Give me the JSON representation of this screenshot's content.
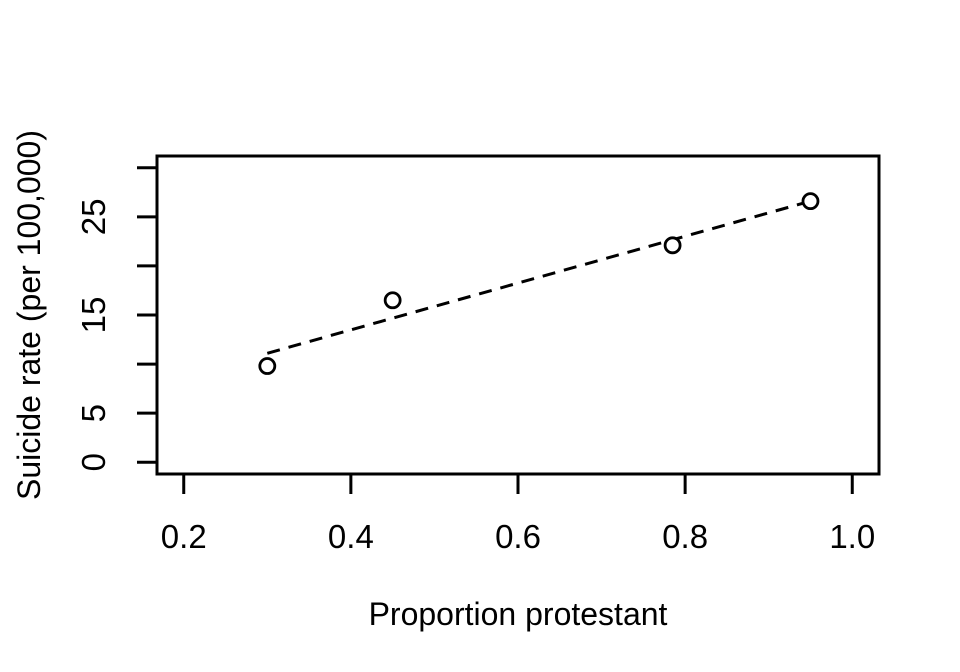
{
  "figure": {
    "background": "#ffffff",
    "foreground": "#000000"
  },
  "chart_data": {
    "type": "scatter",
    "title": "",
    "xlabel": "Proportion protestant",
    "ylabel": "Suicide rate (per 100,000)",
    "points": [
      {
        "x": 0.3,
        "y": 9.8
      },
      {
        "x": 0.45,
        "y": 16.5
      },
      {
        "x": 0.785,
        "y": 22.1
      },
      {
        "x": 0.95,
        "y": 26.6
      }
    ],
    "marker": "open-circle",
    "fit_line": {
      "style": "dashed",
      "x1": 0.3,
      "y1": 11.1,
      "x2": 0.95,
      "y2": 26.6
    },
    "xlim": [
      0.168,
      1.032
    ],
    "ylim": [
      -1.2,
      31.2
    ],
    "x_ticks": {
      "values": [
        0.2,
        0.4,
        0.6,
        0.8,
        1.0
      ],
      "labels": [
        "0.2",
        "0.4",
        "0.6",
        "0.8",
        "1.0"
      ]
    },
    "y_ticks": {
      "values": [
        0,
        5,
        10,
        15,
        20,
        25,
        30
      ],
      "labels": [
        "0",
        "5",
        "",
        "15",
        "",
        "25",
        ""
      ]
    },
    "grid": false,
    "legend": null,
    "colors": {
      "stroke": "#000000",
      "background": "#ffffff"
    }
  }
}
